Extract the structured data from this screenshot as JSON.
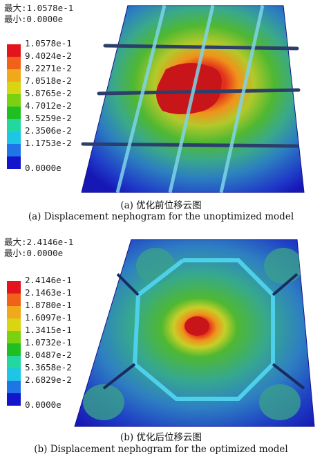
{
  "panel_a": {
    "stats": {
      "max": "最大:1.0578e-1",
      "min": "最小:0.0000e"
    },
    "legend": [
      {
        "label": "1.0578e-1",
        "color": "#e3141b"
      },
      {
        "label": "9.4024e-2",
        "color": "#f0621a"
      },
      {
        "label": "8.2271e-2",
        "color": "#f2a81b"
      },
      {
        "label": "7.0518e-2",
        "color": "#d9d512"
      },
      {
        "label": "5.8765e-2",
        "color": "#7ad111"
      },
      {
        "label": "4.7012e-2",
        "color": "#1fbf22"
      },
      {
        "label": "3.5259e-2",
        "color": "#22d8a0"
      },
      {
        "label": "2.3506e-2",
        "color": "#1ec6e6"
      },
      {
        "label": "1.1753e-2",
        "color": "#1f74e6"
      },
      {
        "label": "0.0000e",
        "color": "#1414cc"
      }
    ],
    "caption_cn": "(a) 优化前位移云图",
    "caption_en": "(a) Displacement nephogram for the unoptimized model"
  },
  "panel_b": {
    "stats": {
      "max": "最大:2.4146e-1",
      "min": "最小:0.0000e"
    },
    "legend": [
      {
        "label": "2.4146e-1",
        "color": "#e3141b"
      },
      {
        "label": "2.1463e-1",
        "color": "#f0621a"
      },
      {
        "label": "1.8780e-1",
        "color": "#f2a81b"
      },
      {
        "label": "1.6097e-1",
        "color": "#d9d512"
      },
      {
        "label": "1.3415e-1",
        "color": "#7ad111"
      },
      {
        "label": "1.0732e-1",
        "color": "#1fbf22"
      },
      {
        "label": "8.0487e-2",
        "color": "#22d8a0"
      },
      {
        "label": "5.3658e-2",
        "color": "#1ec6e6"
      },
      {
        "label": "2.6829e-2",
        "color": "#1f74e6"
      },
      {
        "label": "0.0000e",
        "color": "#1414cc"
      }
    ],
    "caption_cn": "(b) 优化后位移云图",
    "caption_en": "(b) Displacement nephogram for the optimized model"
  }
}
